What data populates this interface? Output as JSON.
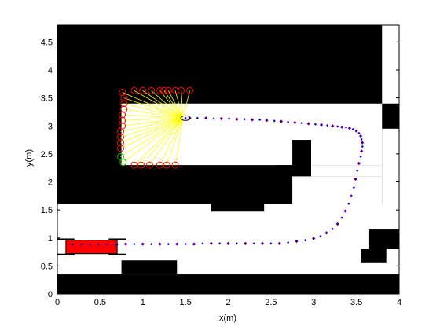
{
  "chart_data": {
    "type": "scatter",
    "title": "",
    "xlabel": "x(m)",
    "ylabel": "y(m)",
    "xlim": [
      0,
      4
    ],
    "ylim": [
      0,
      4.8
    ],
    "grid": false,
    "x_ticks": [
      0,
      0.5,
      1,
      1.5,
      2,
      2.5,
      3,
      3.5,
      4
    ],
    "y_ticks": [
      0,
      0.5,
      1,
      1.5,
      2,
      2.5,
      3,
      3.5,
      4,
      4.5
    ],
    "x_tick_labels": [
      "0",
      "0.5",
      "1",
      "1.5",
      "2",
      "2.5",
      "3",
      "3.5",
      "4"
    ],
    "y_tick_labels": [
      "0",
      "0.5",
      "1",
      "1.5",
      "2",
      "2.5",
      "3",
      "3.5",
      "4",
      "4.5"
    ],
    "colors": {
      "obstacle": "#000000",
      "path_red": "#ff0000",
      "path_blue": "#0000ff",
      "ray": "#ffff00",
      "hit_red": "#ff0000",
      "hit_green": "#00c000",
      "robot_body": "#ff0000"
    },
    "obstacles": [
      {
        "x1": 0,
        "y1": 1.6,
        "x2": 3.8,
        "y2": 4.8
      },
      {
        "x1": 1.8,
        "y1": 1.47,
        "x2": 2.42,
        "y2": 1.6
      },
      {
        "x1": 3.77,
        "y1": 2.95,
        "x2": 4.0,
        "y2": 3.4
      },
      {
        "x1": 3.55,
        "y1": 0.55,
        "x2": 3.85,
        "y2": 0.8
      },
      {
        "x1": 3.65,
        "y1": 0.8,
        "x2": 4.0,
        "y2": 1.15
      },
      {
        "x1": 0.75,
        "y1": 0.35,
        "x2": 1.4,
        "y2": 0.6
      },
      {
        "x1": 0,
        "y1": 0,
        "x2": 4.0,
        "y2": 0.35
      }
    ],
    "free_regions": [
      {
        "x1": 0.75,
        "y1": 2.3,
        "x2": 2.75,
        "y2": 3.4
      },
      {
        "x1": 2.75,
        "y1": 2.1,
        "x2": 3.8,
        "y2": 3.4
      },
      {
        "x1": 2.75,
        "y1": 2.53,
        "x2": 2.97,
        "y2": 2.75
      },
      {
        "x1": 0.75,
        "y1": 2.3,
        "x2": 2.75,
        "y2": 2.3
      }
    ],
    "robot": {
      "x1": 0.1,
      "y1": 0.72,
      "x2": 0.7,
      "y2": 0.96
    },
    "robot_wheels": [
      {
        "x1": 0.0,
        "y1": 0.96,
        "x2": 0.2,
        "y2": 0.99
      },
      {
        "x1": 0.6,
        "y1": 0.96,
        "x2": 0.8,
        "y2": 0.99
      },
      {
        "x1": 0.0,
        "y1": 0.69,
        "x2": 0.2,
        "y2": 0.72
      },
      {
        "x1": 0.6,
        "y1": 0.69,
        "x2": 0.8,
        "y2": 0.72
      }
    ],
    "sensor_origin": [
      1.47,
      3.14
    ],
    "laser_hits": {
      "red": [
        [
          0.76,
          3.6
        ],
        [
          0.78,
          3.5
        ],
        [
          0.78,
          3.4
        ],
        [
          0.78,
          3.3
        ],
        [
          0.76,
          3.1
        ],
        [
          0.76,
          3.0
        ],
        [
          0.74,
          2.9
        ],
        [
          0.74,
          2.8
        ],
        [
          0.74,
          2.7
        ],
        [
          0.74,
          2.6
        ],
        [
          0.76,
          3.2
        ],
        [
          0.9,
          3.63
        ],
        [
          1.0,
          3.63
        ],
        [
          1.1,
          3.63
        ],
        [
          1.2,
          3.63
        ],
        [
          1.25,
          3.63
        ],
        [
          1.3,
          3.63
        ],
        [
          1.38,
          3.63
        ],
        [
          1.45,
          3.63
        ],
        [
          1.55,
          3.63
        ],
        [
          0.9,
          2.3
        ],
        [
          0.98,
          2.3
        ],
        [
          1.08,
          2.3
        ],
        [
          1.2,
          2.3
        ],
        [
          1.28,
          2.3
        ],
        [
          1.38,
          2.3
        ]
      ],
      "green": [
        [
          0.74,
          2.45
        ],
        [
          0.77,
          2.35
        ]
      ]
    },
    "path": {
      "x": [
        0.2,
        0.3,
        0.4,
        0.5,
        0.6,
        0.7,
        0.8,
        0.9,
        1.0,
        1.1,
        1.2,
        1.3,
        1.4,
        1.5,
        1.6,
        1.7,
        1.8,
        1.9,
        2.0,
        2.1,
        2.2,
        2.3,
        2.4,
        2.5,
        2.6,
        2.7,
        2.8,
        2.9,
        3.0,
        3.08,
        3.15,
        3.22,
        3.28,
        3.33,
        3.37,
        3.41,
        3.44,
        3.47,
        3.49,
        3.51,
        3.53,
        3.55,
        3.56,
        3.57,
        3.57,
        3.56,
        3.55,
        3.53,
        3.5,
        3.46,
        3.42,
        3.38,
        3.33,
        3.28,
        3.22,
        3.16,
        3.09,
        3.02,
        2.94,
        2.86,
        2.78,
        2.7,
        2.62,
        2.54,
        2.45,
        2.37,
        2.28,
        2.19,
        2.1,
        2.01,
        1.92,
        1.83,
        1.74,
        1.64,
        1.55,
        1.5
      ],
      "y": [
        0.88,
        0.88,
        0.88,
        0.88,
        0.88,
        0.88,
        0.89,
        0.89,
        0.89,
        0.89,
        0.89,
        0.89,
        0.89,
        0.89,
        0.89,
        0.9,
        0.9,
        0.9,
        0.9,
        0.9,
        0.9,
        0.9,
        0.9,
        0.9,
        0.9,
        0.92,
        0.94,
        0.96,
        0.99,
        1.03,
        1.09,
        1.16,
        1.25,
        1.36,
        1.48,
        1.61,
        1.75,
        1.9,
        2.05,
        2.2,
        2.33,
        2.45,
        2.55,
        2.63,
        2.7,
        2.76,
        2.82,
        2.87,
        2.91,
        2.94,
        2.96,
        2.97,
        2.98,
        2.99,
        3.0,
        3.01,
        3.02,
        3.03,
        3.04,
        3.05,
        3.06,
        3.07,
        3.08,
        3.09,
        3.1,
        3.11,
        3.11,
        3.12,
        3.12,
        3.13,
        3.13,
        3.13,
        3.14,
        3.14,
        3.14,
        3.14
      ]
    }
  }
}
